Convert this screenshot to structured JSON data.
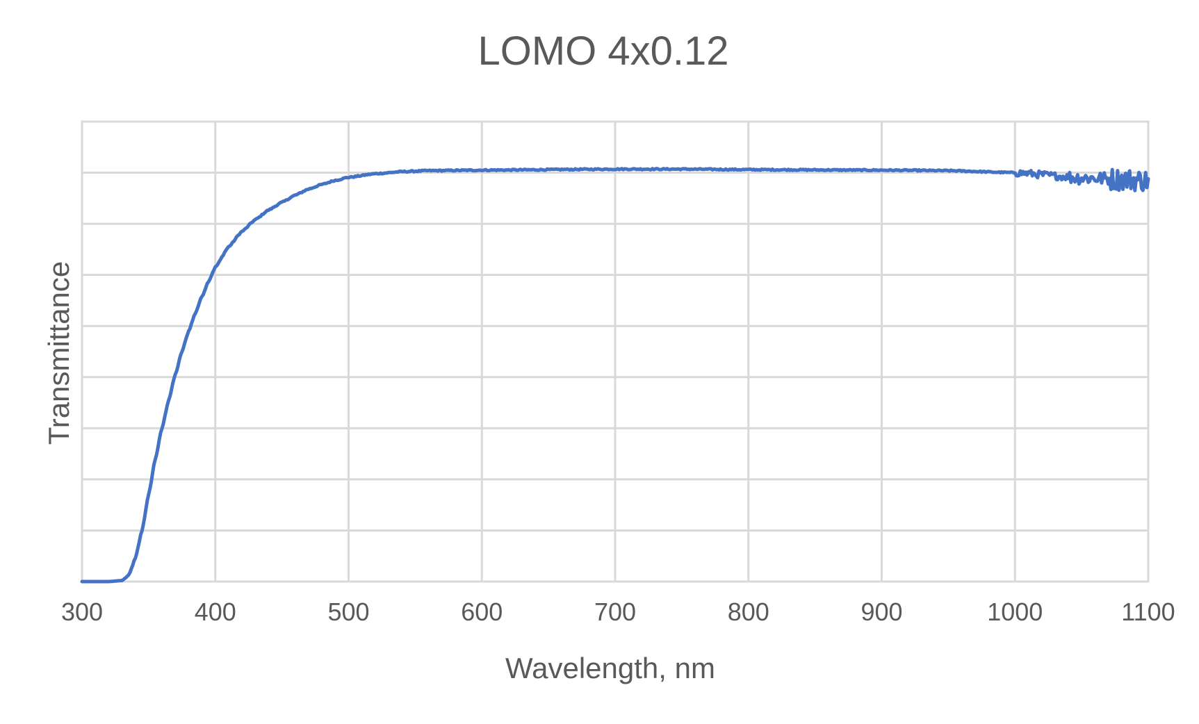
{
  "chart_data": {
    "type": "line",
    "title": "LOMO 4x0.12",
    "xlabel": "Wavelength, nm",
    "ylabel": "Transmittance",
    "xlim": [
      300,
      1100
    ],
    "x_ticks": [
      300,
      400,
      500,
      600,
      700,
      800,
      900,
      1000,
      1100
    ],
    "x_tick_labels": [
      "300",
      "400",
      "500",
      "600",
      "700",
      "800",
      "900",
      "1000",
      "1100"
    ],
    "ylim": [
      0,
      9
    ],
    "y_gridlines": 9,
    "y_tick_labels_shown": false,
    "grid": true,
    "legend": "none",
    "series": [
      {
        "color": "#4472c4",
        "noise": [
          {
            "from": 300,
            "to": 1000,
            "amplitude": 0.012
          },
          {
            "from": 1000,
            "to": 1040,
            "amplitude": 0.07
          },
          {
            "from": 1040,
            "to": 1070,
            "amplitude": 0.13
          },
          {
            "from": 1070,
            "to": 1100,
            "amplitude": 0.22
          }
        ],
        "points": [
          [
            300,
            0.0
          ],
          [
            320,
            0.0
          ],
          [
            330,
            0.02
          ],
          [
            335,
            0.12
          ],
          [
            340,
            0.45
          ],
          [
            345,
            1.0
          ],
          [
            350,
            1.7
          ],
          [
            355,
            2.4
          ],
          [
            360,
            3.0
          ],
          [
            365,
            3.55
          ],
          [
            370,
            4.05
          ],
          [
            375,
            4.5
          ],
          [
            380,
            4.9
          ],
          [
            385,
            5.25
          ],
          [
            390,
            5.58
          ],
          [
            395,
            5.88
          ],
          [
            400,
            6.15
          ],
          [
            410,
            6.55
          ],
          [
            420,
            6.85
          ],
          [
            430,
            7.08
          ],
          [
            440,
            7.27
          ],
          [
            450,
            7.42
          ],
          [
            460,
            7.56
          ],
          [
            470,
            7.68
          ],
          [
            480,
            7.77
          ],
          [
            490,
            7.85
          ],
          [
            500,
            7.91
          ],
          [
            520,
            7.98
          ],
          [
            540,
            8.02
          ],
          [
            560,
            8.04
          ],
          [
            600,
            8.05
          ],
          [
            700,
            8.07
          ],
          [
            750,
            8.07
          ],
          [
            800,
            8.06
          ],
          [
            900,
            8.05
          ],
          [
            950,
            8.04
          ],
          [
            1000,
            8.0
          ],
          [
            1050,
            7.9
          ],
          [
            1100,
            7.85
          ]
        ]
      }
    ]
  }
}
